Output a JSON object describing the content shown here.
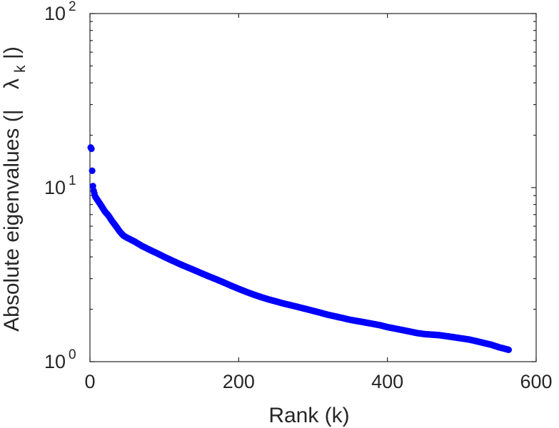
{
  "chart_data": {
    "type": "scatter",
    "title": "",
    "xlabel": "Rank (k)",
    "ylabel_parts": {
      "prefix": "Absolute eigenvalues (|",
      "symbol": "λ",
      "subscript": "k",
      "suffix": "|)"
    },
    "xlim": [
      0,
      600
    ],
    "ylim": [
      1,
      100
    ],
    "yscale": "log",
    "grid": false,
    "legend": "none",
    "marker_color": "#0000ff",
    "x_ticks": [
      {
        "value": 0,
        "label": "0"
      },
      {
        "value": 200,
        "label": "200"
      },
      {
        "value": 400,
        "label": "400"
      },
      {
        "value": 600,
        "label": "600"
      }
    ],
    "y_ticks": [
      {
        "value": 1,
        "base": "10",
        "exp": "0"
      },
      {
        "value": 10,
        "base": "10",
        "exp": "1"
      },
      {
        "value": 100,
        "base": "10",
        "exp": "2"
      }
    ],
    "series": [
      {
        "x": [
          1,
          2,
          3,
          4,
          5,
          7,
          10,
          15,
          20,
          25,
          30,
          35,
          40,
          45,
          50,
          60,
          70,
          80,
          90,
          100,
          110,
          120,
          130,
          140,
          150,
          160,
          170,
          180,
          190,
          200,
          210,
          220,
          230,
          240,
          250,
          260,
          270,
          280,
          290,
          300,
          310,
          320,
          330,
          340,
          350,
          360,
          370,
          380,
          390,
          400,
          410,
          420,
          430,
          440,
          450,
          460,
          470,
          480,
          490,
          500,
          510,
          520,
          530,
          540,
          550,
          560,
          563
        ],
        "y": [
          17.0,
          16.7,
          12.5,
          10.2,
          9.6,
          8.9,
          8.5,
          7.9,
          7.3,
          6.9,
          6.4,
          6.0,
          5.6,
          5.3,
          5.15,
          4.9,
          4.62,
          4.4,
          4.2,
          4.0,
          3.82,
          3.65,
          3.5,
          3.36,
          3.22,
          3.09,
          2.97,
          2.85,
          2.73,
          2.62,
          2.52,
          2.43,
          2.35,
          2.28,
          2.22,
          2.16,
          2.11,
          2.06,
          2.01,
          1.96,
          1.91,
          1.86,
          1.82,
          1.78,
          1.74,
          1.71,
          1.68,
          1.65,
          1.62,
          1.58,
          1.55,
          1.52,
          1.49,
          1.46,
          1.44,
          1.43,
          1.42,
          1.4,
          1.38,
          1.36,
          1.34,
          1.31,
          1.28,
          1.25,
          1.21,
          1.18,
          1.17
        ]
      }
    ]
  }
}
